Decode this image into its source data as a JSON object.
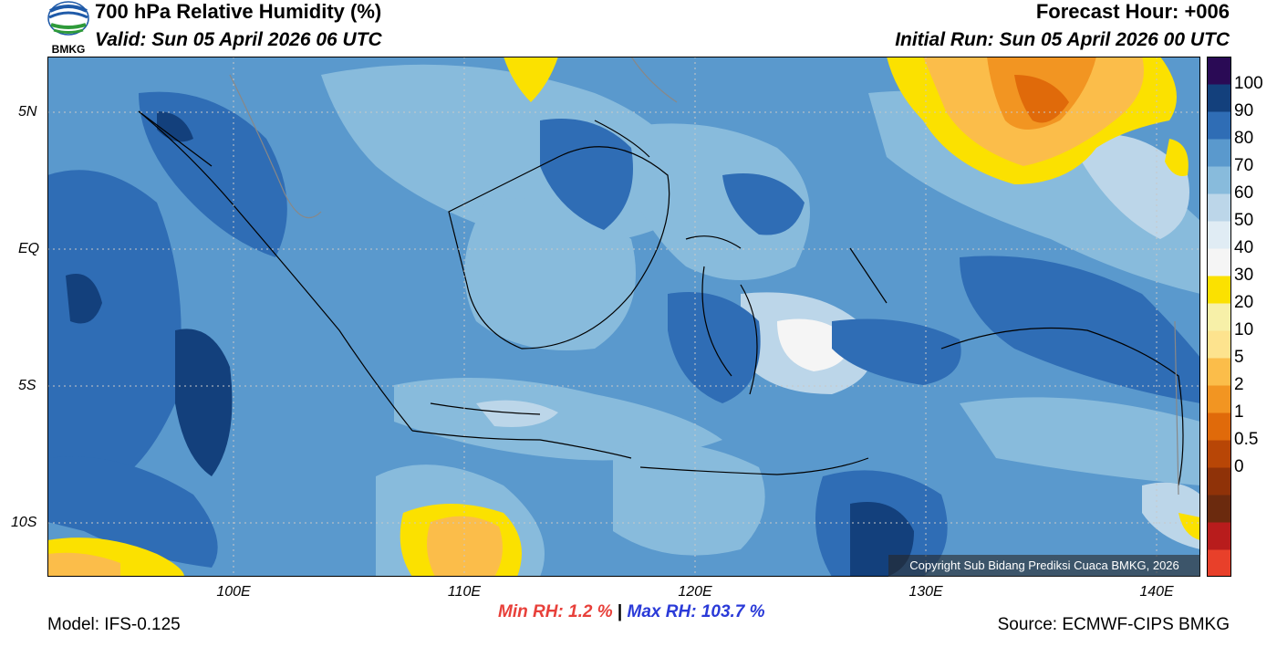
{
  "header": {
    "title": "700 hPa Relative Humidity (%)",
    "valid": "Valid: Sun 05 April 2026 06 UTC",
    "forecast_hour": "Forecast Hour: +006",
    "initial_run": "Initial Run: Sun 05 April 2026 00 UTC",
    "logo_text": "BMKG"
  },
  "map": {
    "lat_labels": [
      "5N",
      "EQ",
      "5S",
      "10S"
    ],
    "lon_labels": [
      "100E",
      "110E",
      "120E",
      "130E",
      "140E"
    ],
    "copyright": "Copyright Sub Bidang Prediksi Cuaca BMKG, 2026"
  },
  "colorbar": {
    "labels": [
      "100",
      "90",
      "80",
      "70",
      "60",
      "50",
      "40",
      "30",
      "20",
      "10",
      "5",
      "2",
      "1",
      "0.5",
      "0"
    ],
    "colors": [
      "#e8402a",
      "#b81c1c",
      "#6b2a0e",
      "#8f3208",
      "#b84606",
      "#e06a0a",
      "#f29522",
      "#fbbd4a",
      "#fde38e",
      "#f7f0a8",
      "#fbe100",
      "#f5f5f5",
      "#e0ecf4",
      "#bcd6e9",
      "#88bbdc",
      "#5a99cd",
      "#2f6db5",
      "#13407c",
      "#2a0a55"
    ]
  },
  "stats": {
    "min_label": "Min RH:",
    "min_value": "1.2 %",
    "separator": "|",
    "max_label": "Max RH:",
    "max_value": "103.7 %"
  },
  "footer": {
    "model": "Model: IFS-0.125",
    "source": "Source: ECMWF-CIPS BMKG"
  }
}
